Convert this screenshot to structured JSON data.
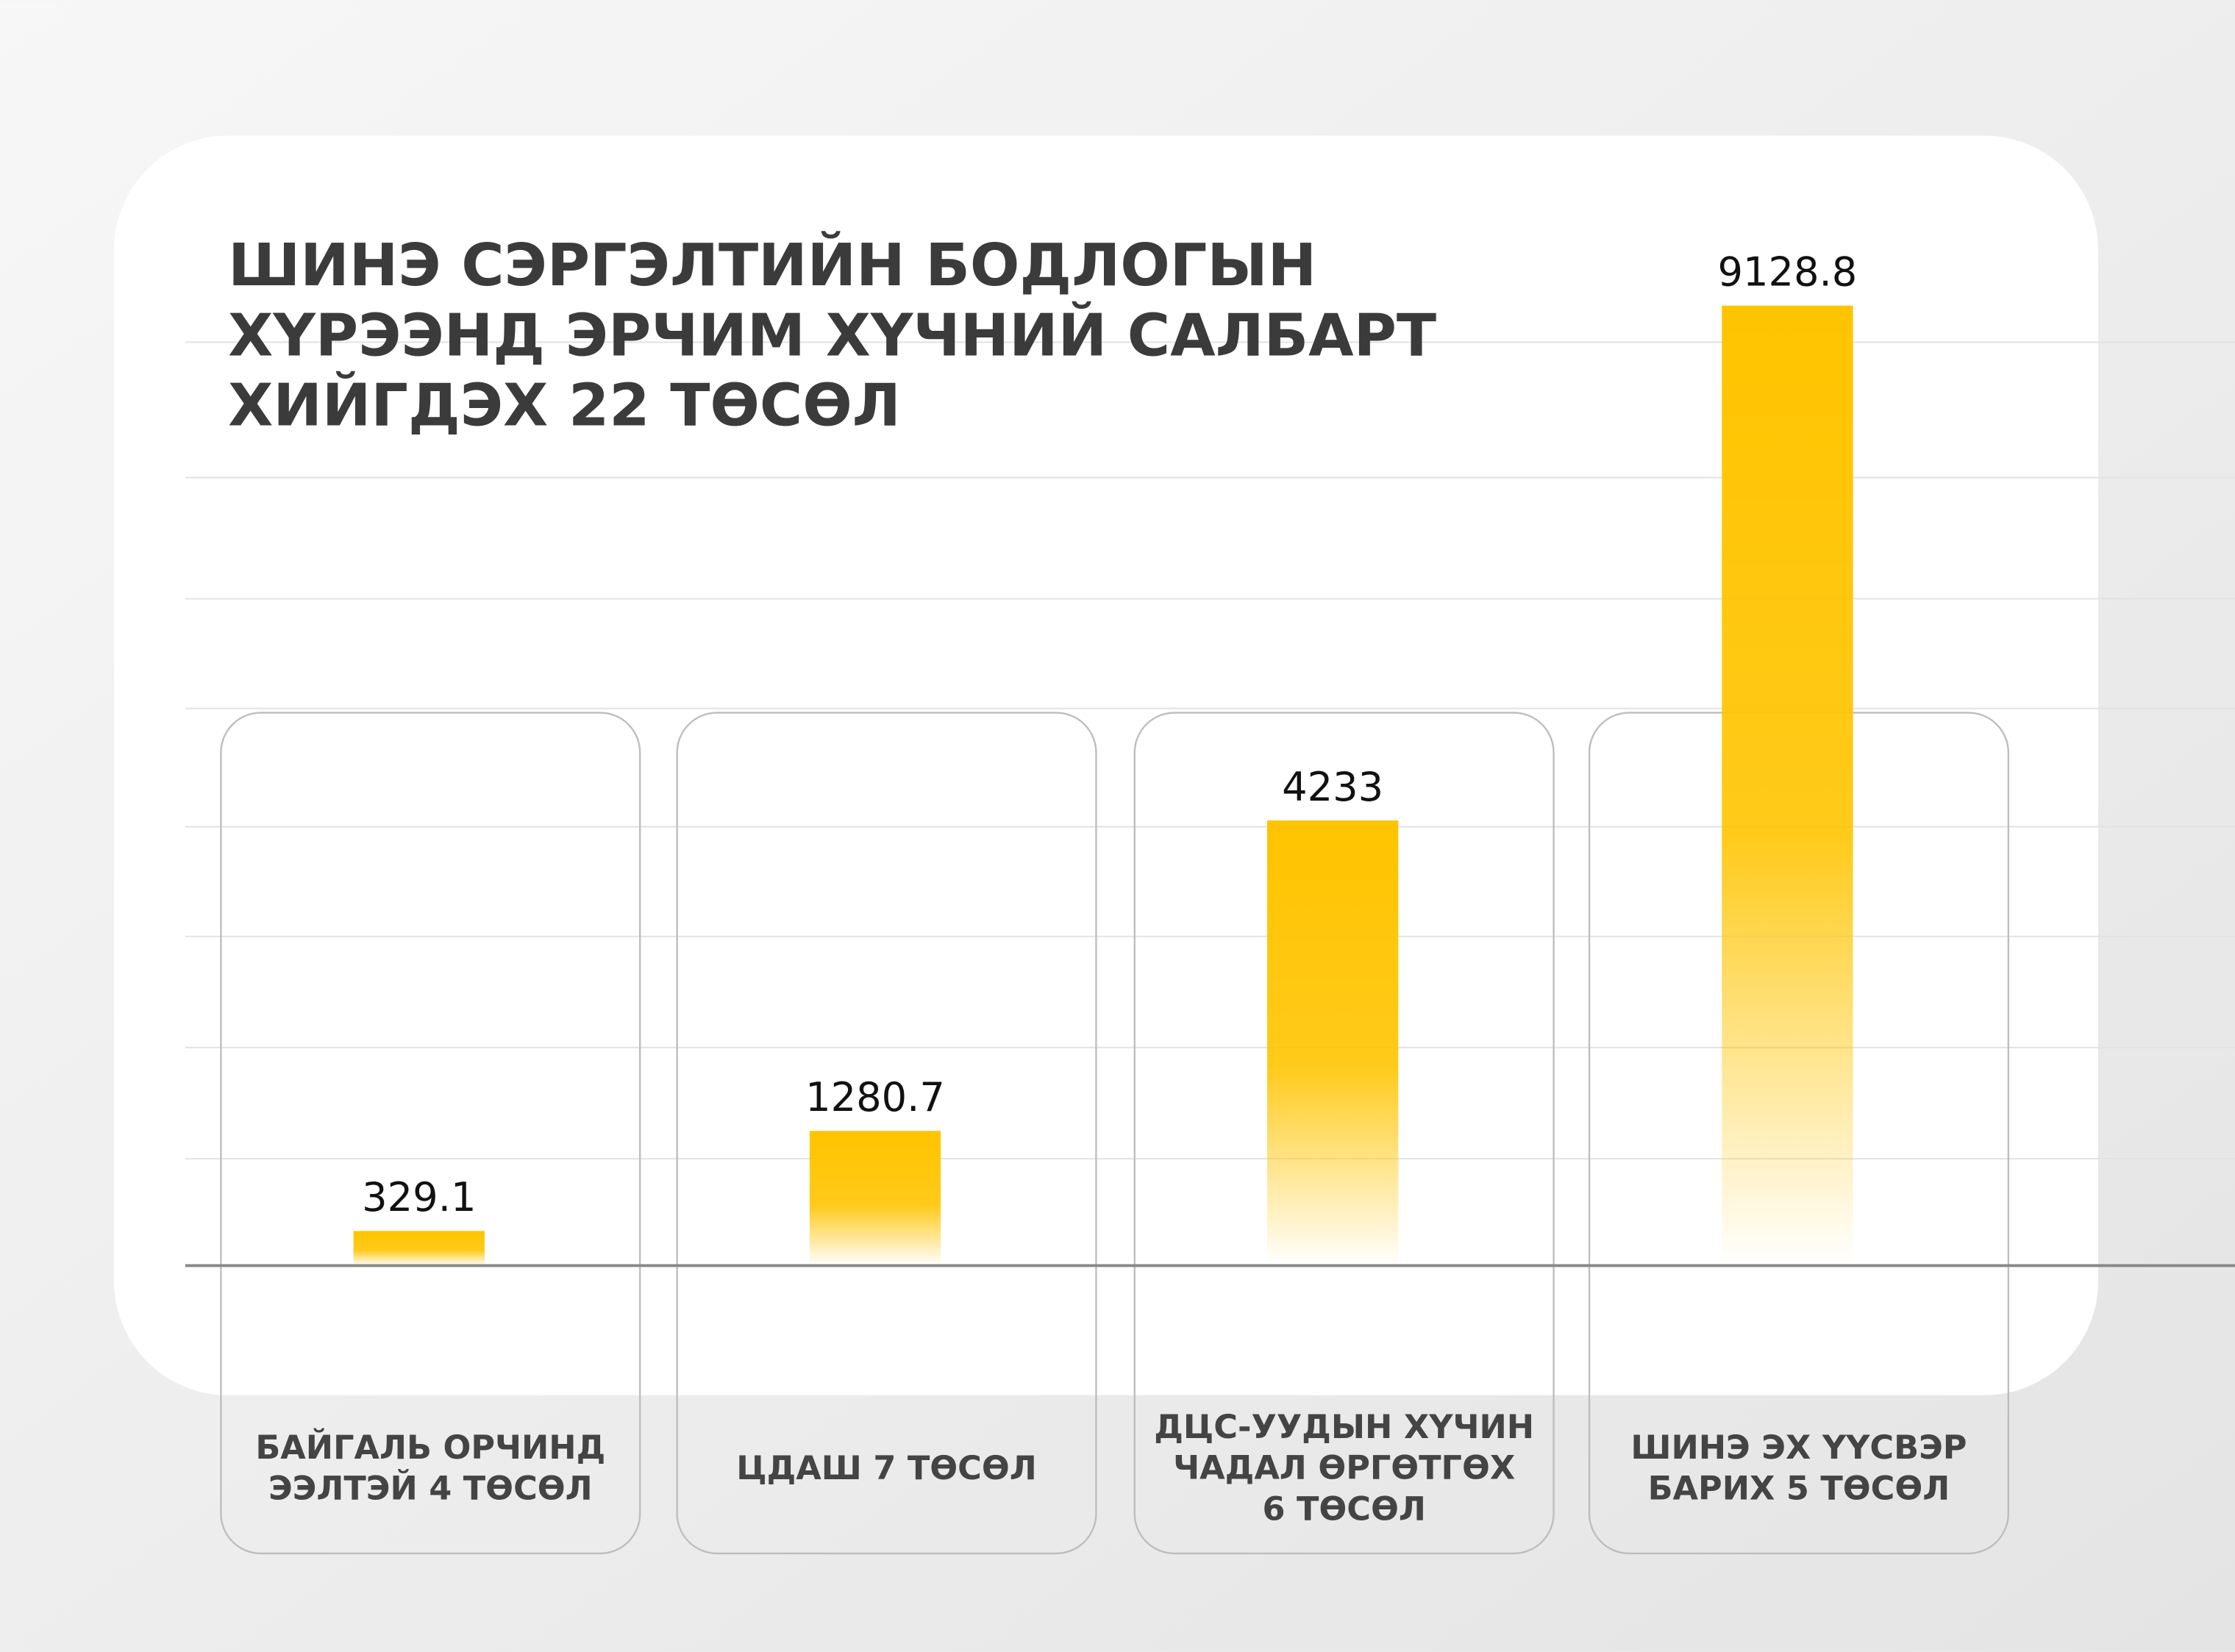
{
  "chart_data": {
    "type": "bar",
    "title": "ШИНЭ СЭРГЭЛТИЙН БОДЛОГЫН\nХҮРЭЭНД ЭРЧИМ ХҮЧНИЙ САЛБАРТ\nХИЙГДЭХ 22 ТӨСӨЛ",
    "categories": [
      "БАЙГАЛЬ ОРЧИНД\nЭЭЛТЭЙ 4 ТӨСӨЛ",
      "ЦДАШ 7 ТӨСӨЛ",
      "ДЦС-УУДЫН ХҮЧИН\nЧАДАЛ ӨРГӨТГӨХ\n6 ТӨСӨЛ",
      "ШИНЭ ЭХ ҮҮСВЭР\nБАРИХ 5 ТӨСӨЛ"
    ],
    "values": [
      329.1,
      1280.7,
      4233,
      9128.8
    ],
    "color": "#ffc400",
    "ylim": [
      0,
      10000
    ]
  }
}
